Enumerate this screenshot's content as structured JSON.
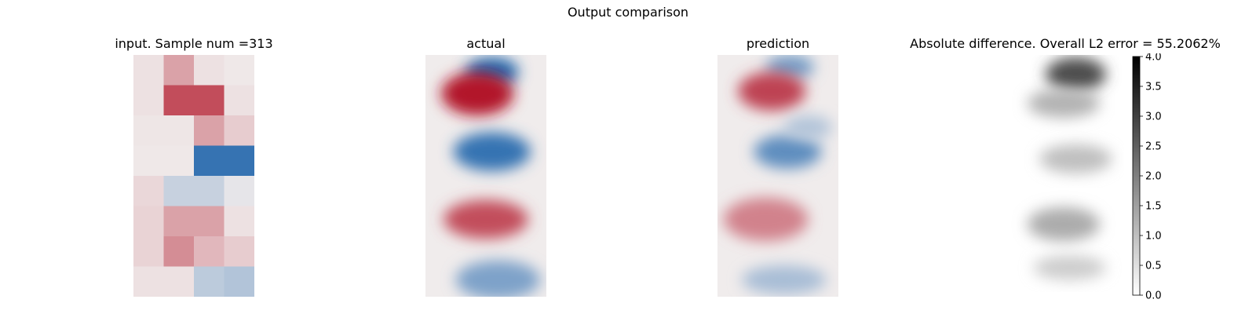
{
  "figure": {
    "suptitle": "Output comparison"
  },
  "colors": {
    "positive": "#b2182b",
    "negative": "#2166ac",
    "neutral": "#f0ecec"
  },
  "chart_data": [
    {
      "type": "heatmap",
      "title": "input. Sample num =313",
      "grid_rows": 8,
      "grid_cols": 4,
      "values": [
        [
          0.05,
          0.35,
          0.05,
          0.02
        ],
        [
          0.05,
          0.75,
          0.75,
          0.05
        ],
        [
          0.03,
          0.03,
          0.35,
          0.15
        ],
        [
          0.02,
          0.02,
          -0.9,
          -0.9
        ],
        [
          0.1,
          -0.2,
          -0.2,
          -0.05
        ],
        [
          0.12,
          0.35,
          0.35,
          0.05
        ],
        [
          0.12,
          0.45,
          0.25,
          0.15
        ],
        [
          0.05,
          0.05,
          -0.25,
          -0.3
        ]
      ]
    },
    {
      "type": "heatmap",
      "title": "actual",
      "blobs": [
        {
          "x": 0.55,
          "y": 0.07,
          "rx": 0.22,
          "ry": 0.06,
          "v": -1.0
        },
        {
          "x": 0.43,
          "y": 0.16,
          "rx": 0.3,
          "ry": 0.09,
          "v": 1.0
        },
        {
          "x": 0.55,
          "y": 0.4,
          "rx": 0.32,
          "ry": 0.08,
          "v": -0.9
        },
        {
          "x": 0.5,
          "y": 0.68,
          "rx": 0.35,
          "ry": 0.08,
          "v": 0.75
        },
        {
          "x": 0.6,
          "y": 0.93,
          "rx": 0.35,
          "ry": 0.08,
          "v": -0.55
        }
      ]
    },
    {
      "type": "heatmap",
      "title": "prediction",
      "blobs": [
        {
          "x": 0.6,
          "y": 0.05,
          "rx": 0.2,
          "ry": 0.05,
          "v": -0.6
        },
        {
          "x": 0.45,
          "y": 0.15,
          "rx": 0.28,
          "ry": 0.08,
          "v": 0.8
        },
        {
          "x": 0.58,
          "y": 0.4,
          "rx": 0.28,
          "ry": 0.07,
          "v": -0.7
        },
        {
          "x": 0.4,
          "y": 0.68,
          "rx": 0.35,
          "ry": 0.09,
          "v": 0.5
        },
        {
          "x": 0.55,
          "y": 0.93,
          "rx": 0.35,
          "ry": 0.06,
          "v": -0.35
        },
        {
          "x": 0.75,
          "y": 0.3,
          "rx": 0.2,
          "ry": 0.05,
          "v": -0.3
        }
      ]
    },
    {
      "type": "heatmap",
      "title": "Absolute difference. Overall L2 error = 55.2062%",
      "colormap": "gray_r",
      "vmin": 0.0,
      "vmax": 4.0,
      "colorbar_ticks": [
        "0.0",
        "0.5",
        "1.0",
        "1.5",
        "2.0",
        "2.5",
        "3.0",
        "3.5",
        "4.0"
      ],
      "colorbar_values": [
        0.0,
        0.5,
        1.0,
        1.5,
        2.0,
        2.5,
        3.0,
        3.5,
        4.0
      ],
      "blobs": [
        {
          "x": 0.6,
          "y": 0.08,
          "rx": 0.25,
          "ry": 0.07,
          "v": 2.8
        },
        {
          "x": 0.5,
          "y": 0.2,
          "rx": 0.3,
          "ry": 0.06,
          "v": 1.2
        },
        {
          "x": 0.6,
          "y": 0.43,
          "rx": 0.3,
          "ry": 0.06,
          "v": 1.0
        },
        {
          "x": 0.5,
          "y": 0.7,
          "rx": 0.3,
          "ry": 0.07,
          "v": 1.3
        },
        {
          "x": 0.55,
          "y": 0.88,
          "rx": 0.3,
          "ry": 0.05,
          "v": 0.8
        }
      ]
    }
  ]
}
